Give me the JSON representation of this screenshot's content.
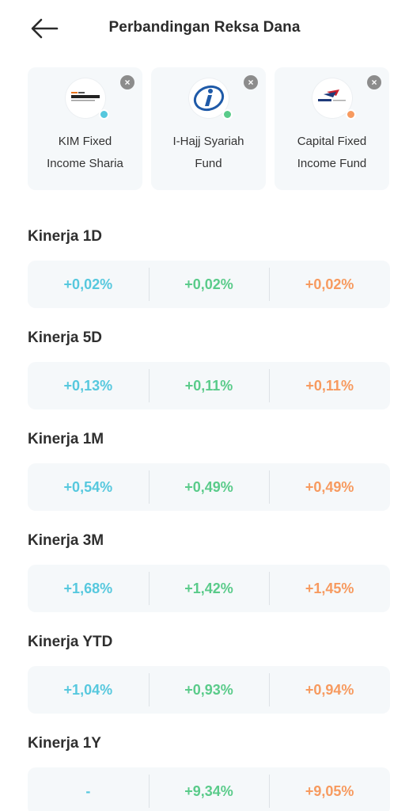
{
  "header": {
    "title": "Perbandingan Reksa Dana",
    "back_icon": "arrow-left-icon"
  },
  "colors": {
    "fund1": "#56c8de",
    "fund2": "#5acb8a",
    "fund3": "#f79a5f",
    "card_bg": "#f5f8fa"
  },
  "funds": [
    {
      "name_line1": "KIM Fixed",
      "name_line2": "Income Sharia",
      "logo_text": "Korea Investment",
      "logo_top": "Korea Investment",
      "close_icon": "close-icon"
    },
    {
      "name_line1": "I-Hajj Syariah",
      "name_line2": "Fund",
      "logo_text": "i",
      "close_icon": "close-icon"
    },
    {
      "name_line1": "Capital Fixed",
      "name_line2": "Income Fund",
      "logo_text": "Capital",
      "close_icon": "close-icon"
    }
  ],
  "close_glyph": "×",
  "performance": [
    {
      "label": "Kinerja 1D",
      "values": [
        "+0,02%",
        "+0,02%",
        "+0,02%"
      ]
    },
    {
      "label": "Kinerja 5D",
      "values": [
        "+0,13%",
        "+0,11%",
        "+0,11%"
      ]
    },
    {
      "label": "Kinerja 1M",
      "values": [
        "+0,54%",
        "+0,49%",
        "+0,49%"
      ]
    },
    {
      "label": "Kinerja 3M",
      "values": [
        "+1,68%",
        "+1,42%",
        "+1,45%"
      ]
    },
    {
      "label": "Kinerja YTD",
      "values": [
        "+1,04%",
        "+0,93%",
        "+0,94%"
      ]
    },
    {
      "label": "Kinerja 1Y",
      "values": [
        "-",
        "+9,34%",
        "+9,05%"
      ]
    }
  ]
}
